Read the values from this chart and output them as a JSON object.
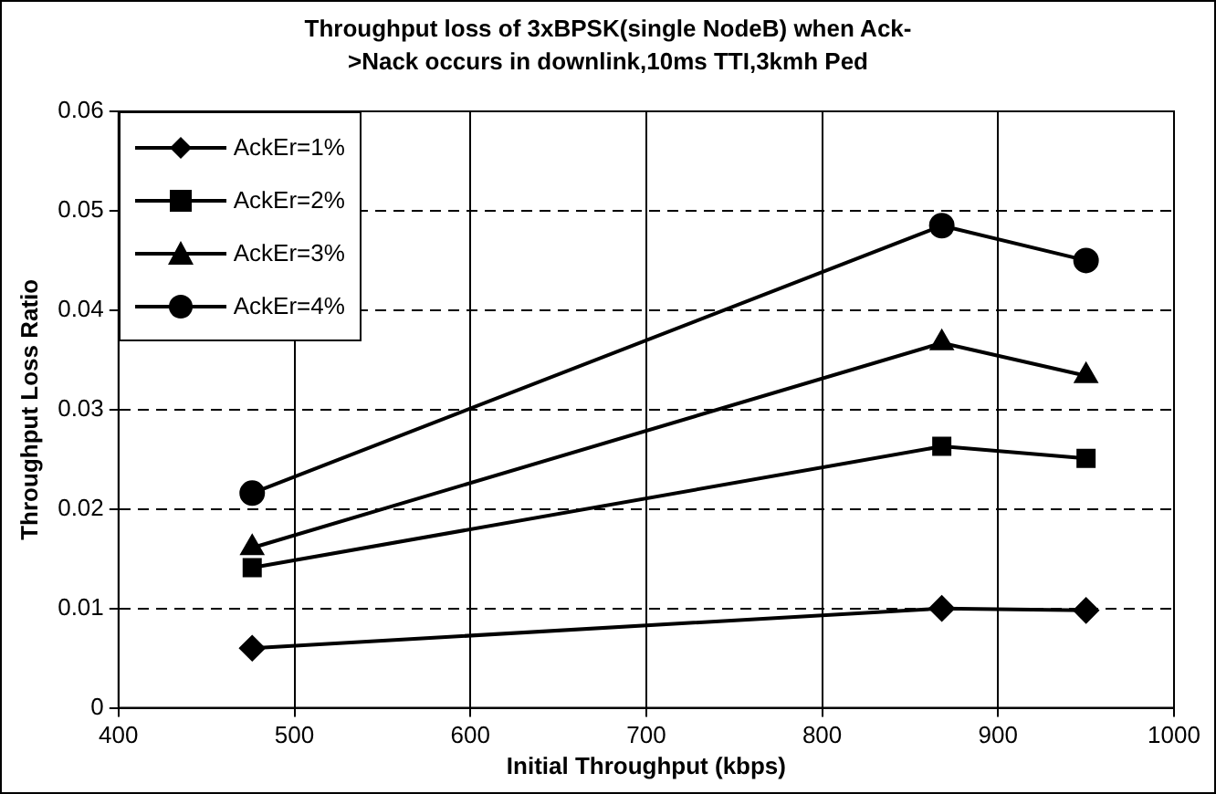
{
  "chart_data": {
    "type": "line",
    "title": "Throughput loss of 3xBPSK(single NodeB) when Ack->Nack occurs in downlink,10ms TTI,3kmh Ped",
    "xlabel": "Initial Throughput (kbps)",
    "ylabel": "Throughput Loss Ratio",
    "x": [
      476,
      868,
      950
    ],
    "series": [
      {
        "name": "AckEr=1%",
        "color": "#000000",
        "marker": "diamond",
        "values": [
          0.006,
          0.01,
          0.0098
        ]
      },
      {
        "name": "AckEr=2%",
        "color": "#000000",
        "marker": "square",
        "values": [
          0.0141,
          0.0263,
          0.0251
        ]
      },
      {
        "name": "AckEr=3%",
        "color": "#000000",
        "marker": "triangle",
        "values": [
          0.0161,
          0.0367,
          0.0334
        ]
      },
      {
        "name": "AckEr=4%",
        "color": "#000000",
        "marker": "circle",
        "values": [
          0.0216,
          0.0485,
          0.045
        ]
      }
    ],
    "xlim": [
      400,
      1000
    ],
    "xticks": [
      400,
      500,
      600,
      700,
      800,
      900,
      1000
    ],
    "ylim": [
      0,
      0.06
    ],
    "yticks": [
      0,
      0.01,
      0.02,
      0.03,
      0.04,
      0.05,
      0.06
    ],
    "grid": true,
    "legend": "top left",
    "line_style": "solid"
  }
}
